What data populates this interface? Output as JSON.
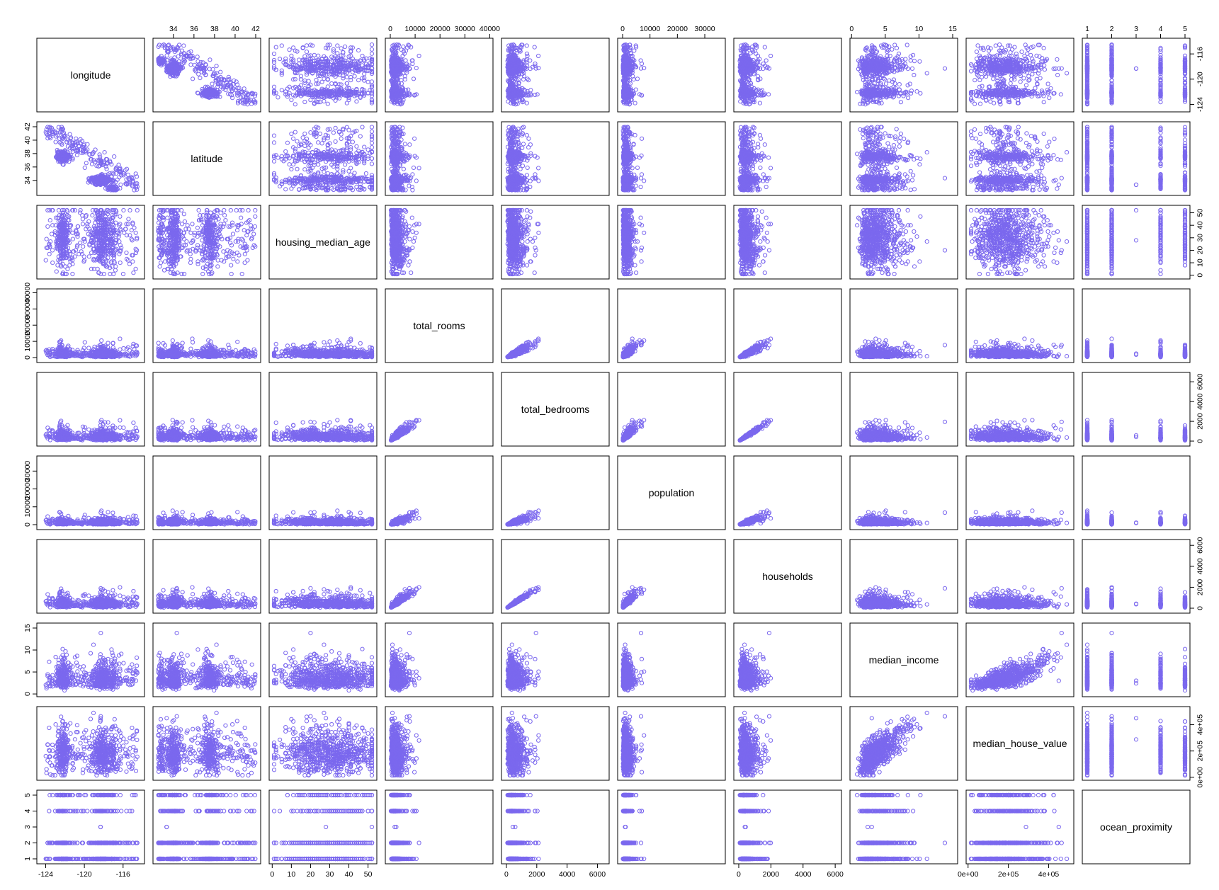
{
  "chart_data": {
    "type": "scatter",
    "kind": "scatterplot-matrix",
    "title": "",
    "point_color": "#7B68EE",
    "point_shape": "open-circle",
    "variables": [
      {
        "name": "longitude",
        "range": [
          -124.4,
          -114.3
        ],
        "ticks": [
          {
            "v": -124,
            "label": "-124"
          },
          {
            "v": -120,
            "label": "-120"
          },
          {
            "v": -116,
            "label": "-116"
          }
        ]
      },
      {
        "name": "latitude",
        "range": [
          32.5,
          42.0
        ],
        "ticks": [
          {
            "v": 34,
            "label": "34"
          },
          {
            "v": 36,
            "label": "36"
          },
          {
            "v": 38,
            "label": "38"
          },
          {
            "v": 40,
            "label": "40"
          },
          {
            "v": 42,
            "label": "42"
          }
        ]
      },
      {
        "name": "housing_median_age",
        "range": [
          1,
          52
        ],
        "ticks": [
          {
            "v": 0,
            "label": "0"
          },
          {
            "v": 10,
            "label": "10"
          },
          {
            "v": 20,
            "label": "20"
          },
          {
            "v": 30,
            "label": "30"
          },
          {
            "v": 40,
            "label": "40"
          },
          {
            "v": 50,
            "label": "50"
          }
        ]
      },
      {
        "name": "total_rooms",
        "range": [
          2,
          39320
        ],
        "ticks": [
          {
            "v": 0,
            "label": "0"
          },
          {
            "v": 10000,
            "label": "10000"
          },
          {
            "v": 20000,
            "label": "20000"
          },
          {
            "v": 30000,
            "label": "30000"
          },
          {
            "v": 40000,
            "label": "40000"
          }
        ]
      },
      {
        "name": "total_bedrooms",
        "range": [
          1,
          6445
        ],
        "ticks": [
          {
            "v": 0,
            "label": "0"
          },
          {
            "v": 2000,
            "label": "2000"
          },
          {
            "v": 4000,
            "label": "4000"
          },
          {
            "v": 6000,
            "label": "6000"
          }
        ]
      },
      {
        "name": "population",
        "range": [
          3,
          35682
        ],
        "ticks": [
          {
            "v": 0,
            "label": "0"
          },
          {
            "v": 10000,
            "label": "10000"
          },
          {
            "v": 20000,
            "label": "20000"
          },
          {
            "v": 30000,
            "label": "30000"
          }
        ]
      },
      {
        "name": "households",
        "range": [
          1,
          6082
        ],
        "ticks": [
          {
            "v": 0,
            "label": "0"
          },
          {
            "v": 2000,
            "label": "2000"
          },
          {
            "v": 4000,
            "label": "4000"
          },
          {
            "v": 6000,
            "label": "6000"
          }
        ]
      },
      {
        "name": "median_income",
        "range": [
          0.5,
          15.0
        ],
        "ticks": [
          {
            "v": 0,
            "label": "0"
          },
          {
            "v": 5,
            "label": "5"
          },
          {
            "v": 10,
            "label": "10"
          },
          {
            "v": 15,
            "label": "15"
          }
        ]
      },
      {
        "name": "median_house_value",
        "range": [
          15000,
          500001
        ],
        "ticks": [
          {
            "v": 0,
            "label": "0e+00"
          },
          {
            "v": 200000,
            "label": "2e+05"
          },
          {
            "v": 400000,
            "label": "4e+05"
          }
        ]
      },
      {
        "name": "ocean_proximity",
        "range": [
          1,
          5
        ],
        "ticks": [
          {
            "v": 1,
            "label": "1"
          },
          {
            "v": 2,
            "label": "2"
          },
          {
            "v": 3,
            "label": "3"
          },
          {
            "v": 4,
            "label": "4"
          },
          {
            "v": 5,
            "label": "5"
          }
        ]
      }
    ],
    "axis_placement": {
      "top_ticks_columns": [
        "latitude",
        "total_rooms",
        "population",
        "median_income",
        "ocean_proximity"
      ],
      "bottom_ticks_columns": [
        "longitude",
        "housing_median_age",
        "total_bedrooms",
        "households",
        "median_house_value"
      ],
      "left_ticks_rows": [
        "latitude",
        "total_rooms",
        "population",
        "median_income",
        "ocean_proximity"
      ],
      "right_ticks_rows": [
        "longitude",
        "housing_median_age",
        "total_bedrooms",
        "households",
        "median_house_value"
      ]
    },
    "grid": false,
    "legend": "none"
  }
}
